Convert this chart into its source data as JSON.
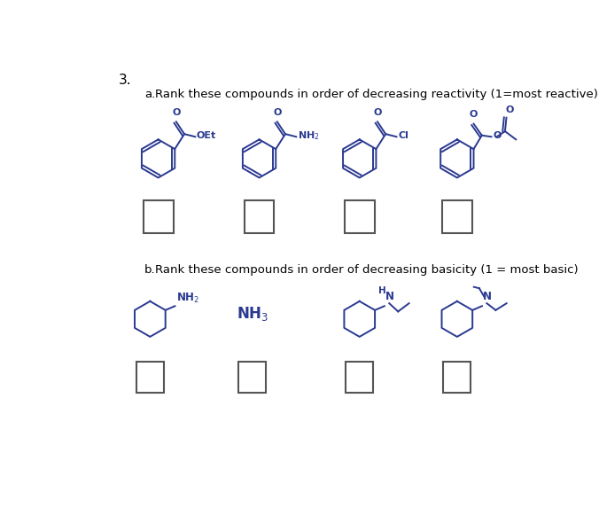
{
  "title_number": "3.",
  "section_a_label": "a.",
  "section_a_text": "Rank these compounds in order of decreasing reactivity (1=most reactive)",
  "section_b_label": "b.",
  "section_b_text": "Rank these compounds in order of decreasing basicity (1 = most basic)",
  "background_color": "#ffffff",
  "text_color": "#000000",
  "structure_color": "#2a3990",
  "box_color": "#555555",
  "title_fontsize": 11,
  "instruction_fontsize": 9.5,
  "struct_label_fontsize": 8
}
